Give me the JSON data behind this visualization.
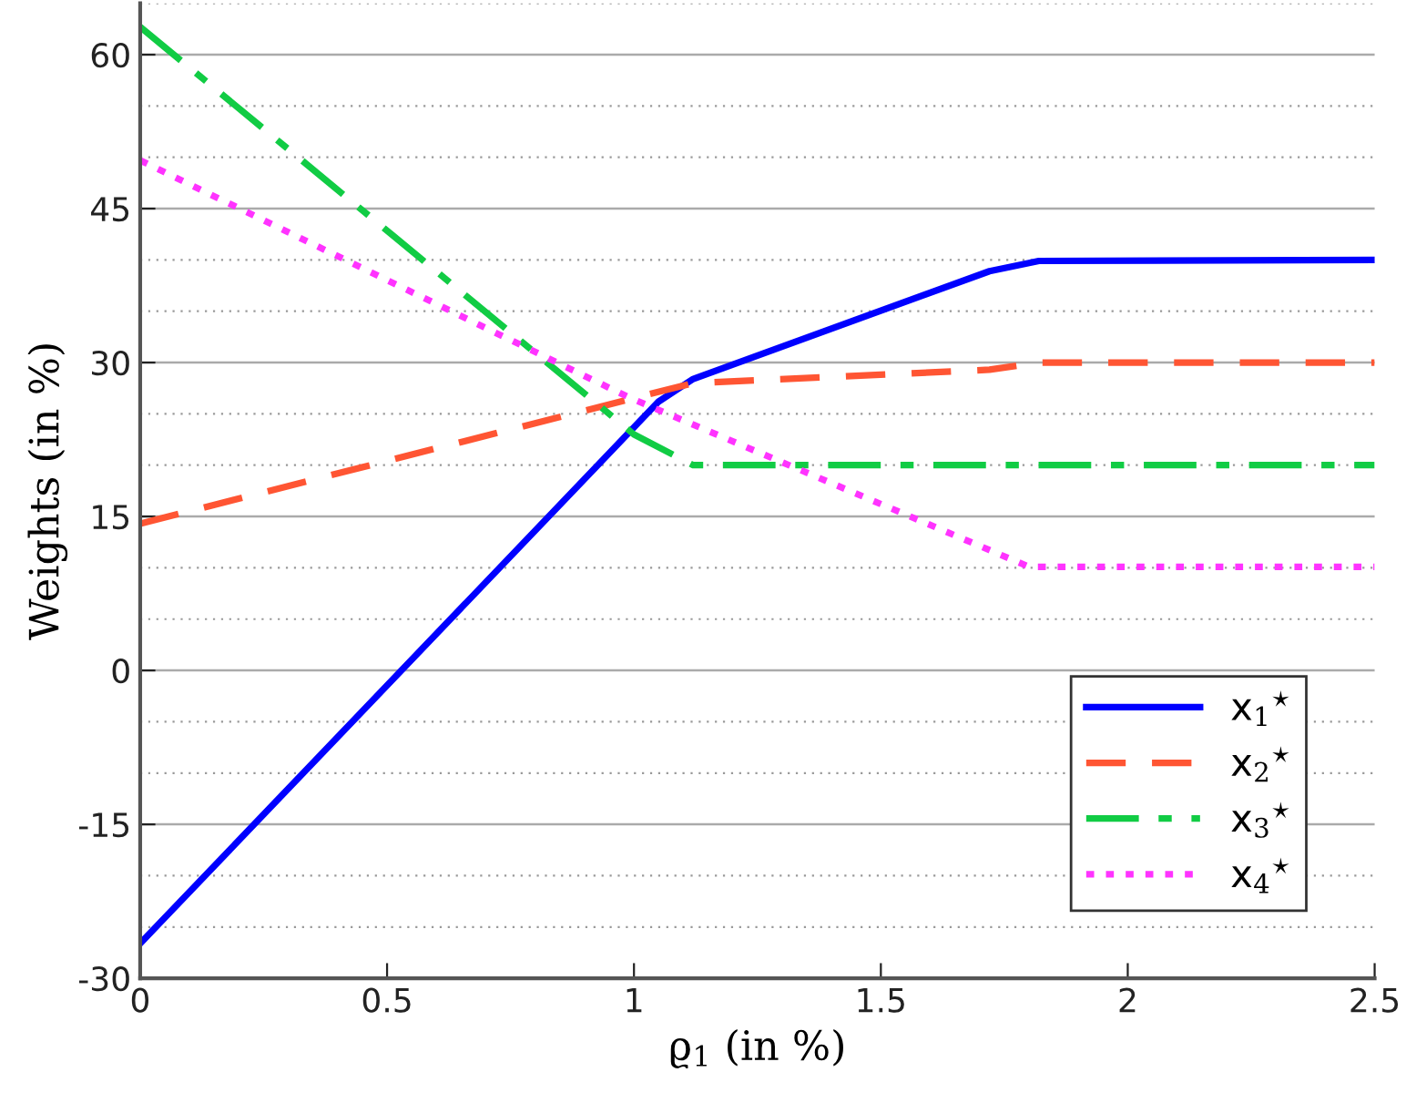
{
  "chart_data": {
    "type": "line",
    "xlabel": "ϱ$_{1}$ (in %)",
    "ylabel": "Weights (in %)",
    "xlim": [
      0,
      2.5
    ],
    "xticks": [
      0,
      0.5,
      1,
      1.5,
      2,
      2.5
    ],
    "ylim": [
      -30,
      65
    ],
    "yticks": [
      -30,
      -15,
      0,
      15,
      30,
      45,
      60
    ],
    "grid": "y",
    "legend": "bottom right",
    "series": [
      {
        "name": "x$_{1}$$^{⋆}$",
        "color": "#0000ff",
        "line_style": "solid",
        "x": [
          0,
          1.05,
          1.12,
          1.72,
          1.82,
          2.5
        ],
        "values": [
          -26.6,
          26.2,
          28.4,
          38.9,
          39.9,
          40
        ]
      },
      {
        "name": "x$_{2}$$^{⋆}$",
        "color": "#ff5533",
        "line_style": "dashed",
        "x": [
          0,
          1.12,
          1.72,
          1.82,
          2.5
        ],
        "values": [
          14.3,
          28,
          29.3,
          30,
          30
        ]
      },
      {
        "name": "x$_{3}$$^{⋆}$",
        "color": "#11cc44",
        "line_style": "dashdot",
        "x": [
          0,
          1.0,
          1.12,
          2.5
        ],
        "values": [
          62.7,
          23,
          20,
          20
        ]
      },
      {
        "name": "x$_{4}$$^{⋆}$",
        "color": "#ff33ff",
        "line_style": "dotted",
        "x": [
          0,
          0.99,
          1.8,
          2.5
        ],
        "values": [
          49.7,
          26.6,
          10.1,
          10.1
        ]
      }
    ]
  }
}
